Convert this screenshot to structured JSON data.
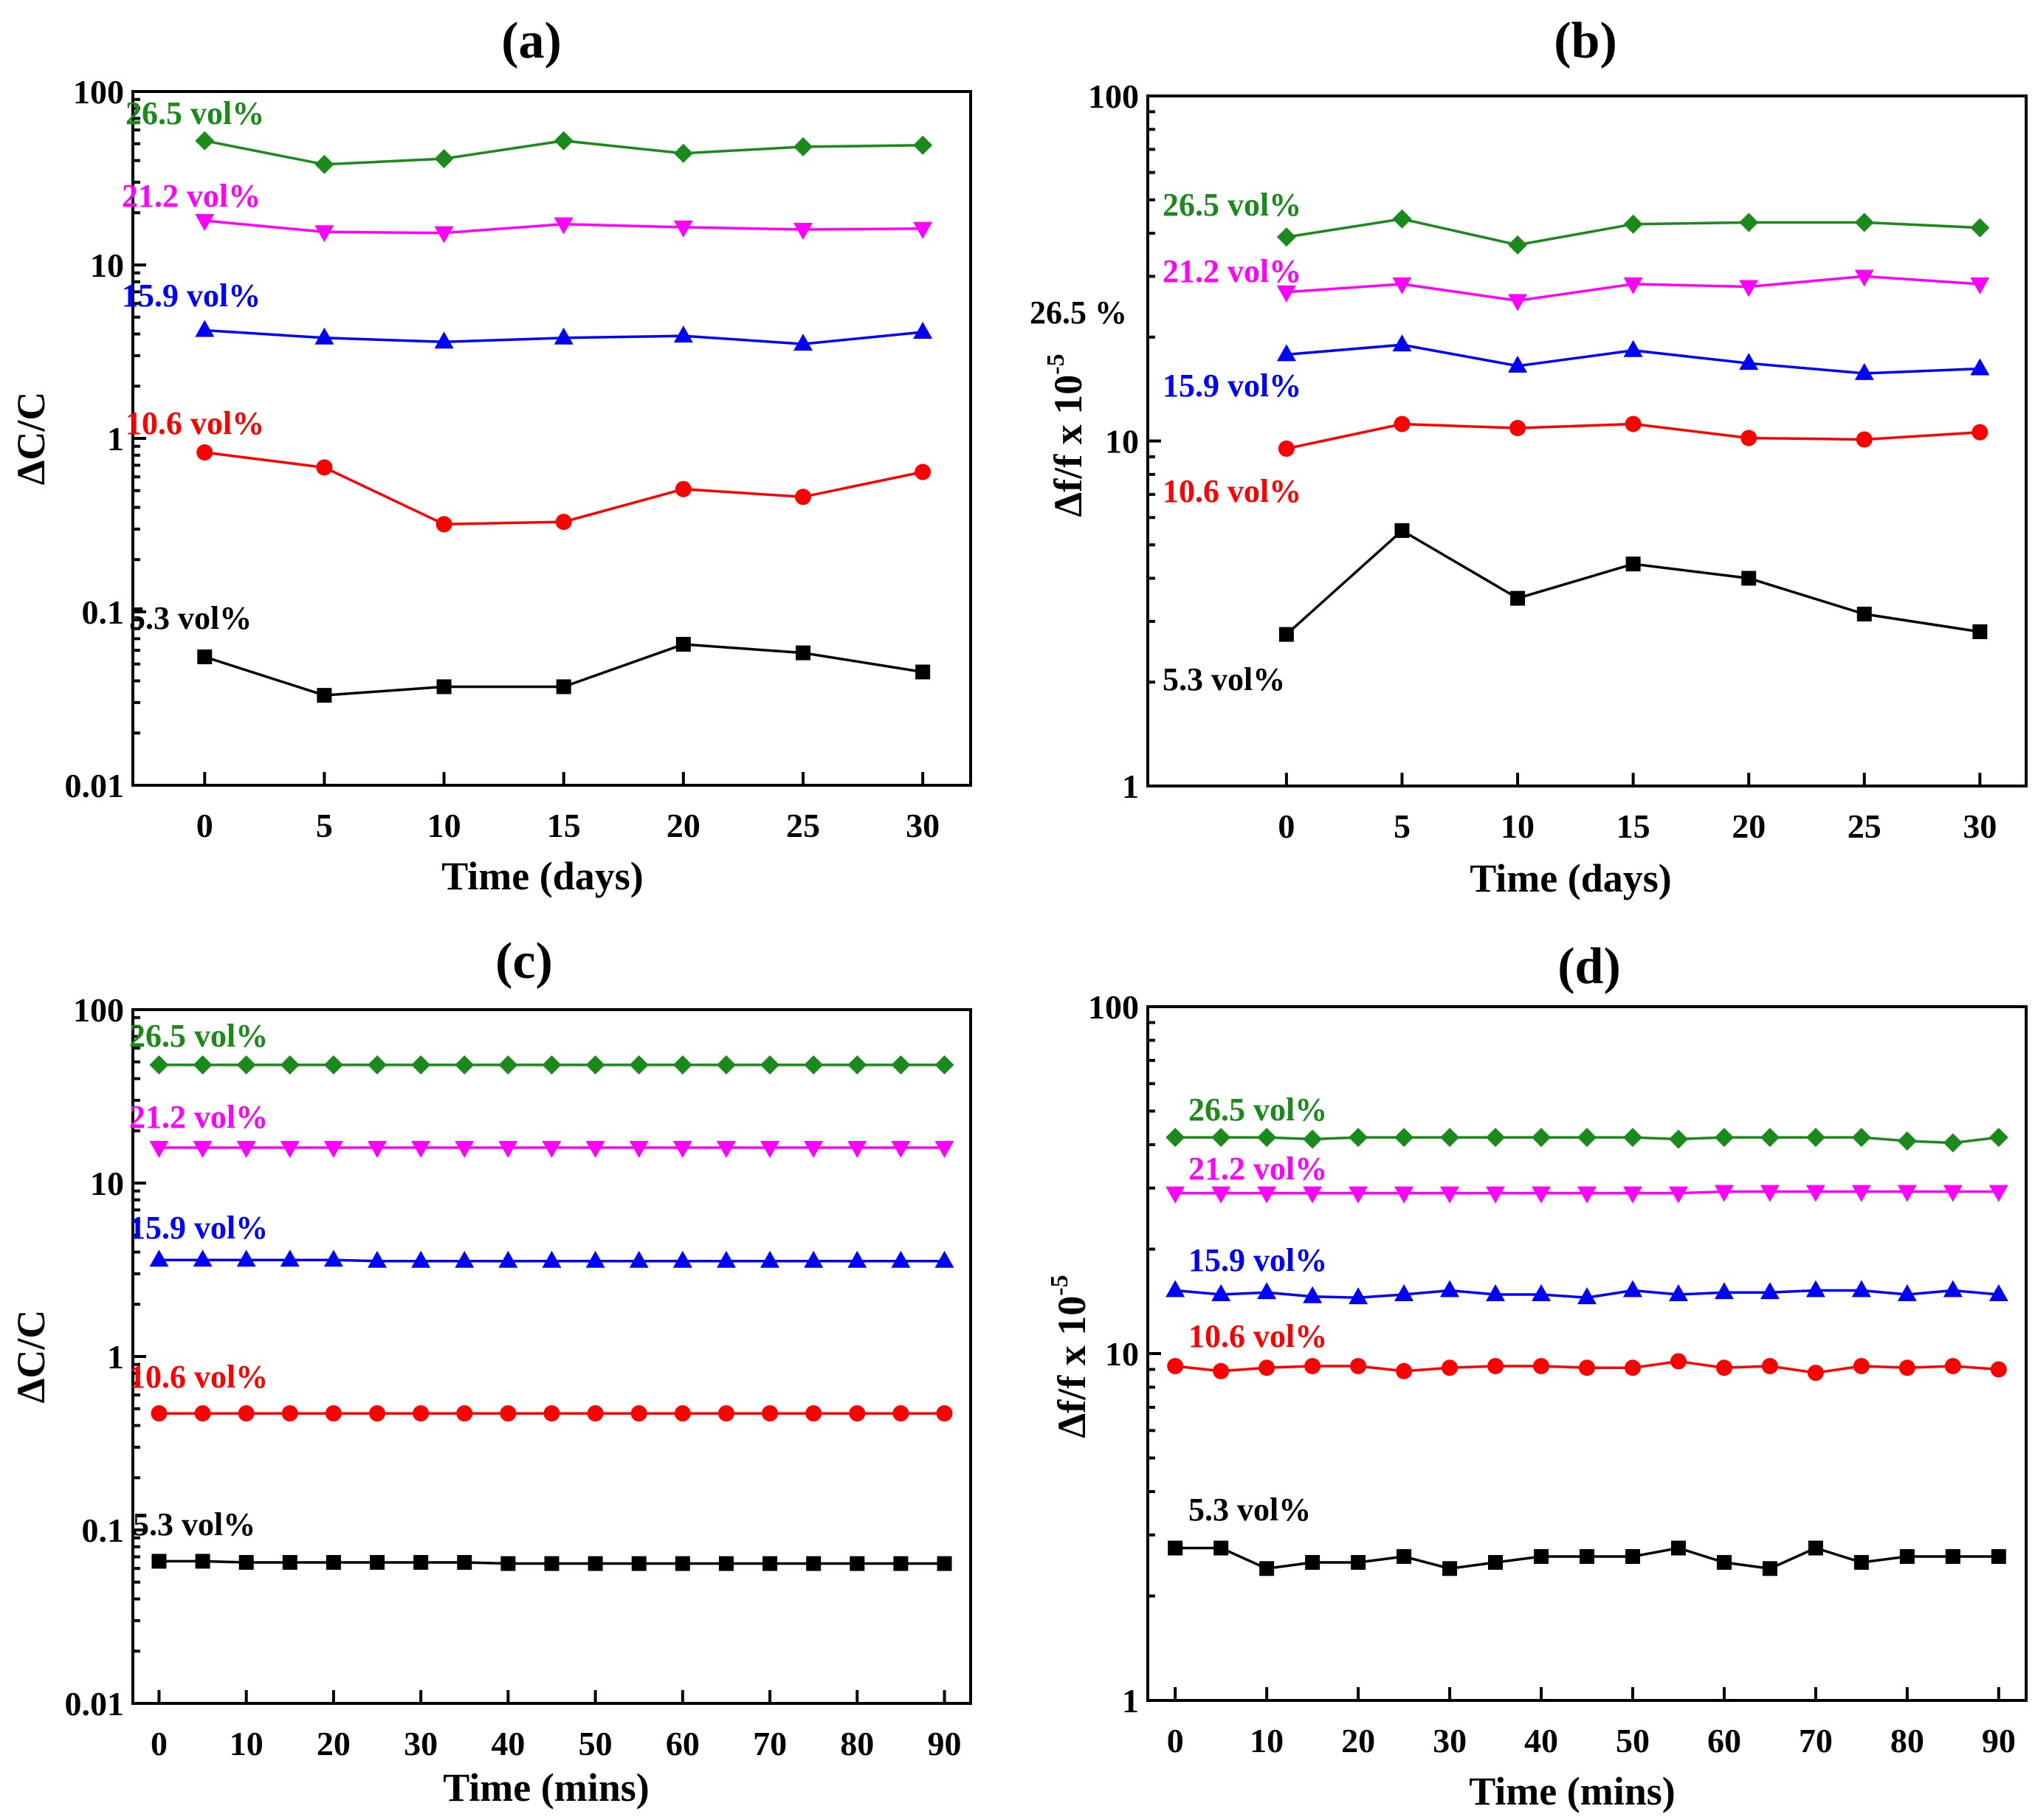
{
  "chart_data": [
    {
      "id": "a",
      "type": "line",
      "title": "(a)",
      "xlabel": "Time (days)",
      "ylabel": "ΔC/C",
      "yscale": "log",
      "ylim": [
        0.01,
        100
      ],
      "xlim": [
        -3,
        32
      ],
      "yticks": [
        "100",
        "10",
        "1",
        "0.1",
        "0.01"
      ],
      "xticks": [
        "0",
        "5",
        "10",
        "15",
        "20",
        "25",
        "30"
      ],
      "x": [
        0,
        5,
        10,
        15,
        20,
        25,
        30
      ],
      "series": [
        {
          "name": "26.5 vol%",
          "color": "#1a8a1a",
          "marker": "diamond",
          "values": [
            52,
            38,
            41,
            52,
            44,
            48,
            49
          ]
        },
        {
          "name": "21.2 vol%",
          "color": "#ff00ff",
          "marker": "triangle-down",
          "values": [
            18,
            15.5,
            15.3,
            17.2,
            16.5,
            16,
            16.2
          ]
        },
        {
          "name": "15.9 vol%",
          "color": "#0000ff",
          "marker": "triangle-up",
          "values": [
            4.2,
            3.8,
            3.6,
            3.8,
            3.9,
            3.5,
            4.1
          ]
        },
        {
          "name": "10.6 vol%",
          "color": "#ff0000",
          "marker": "circle",
          "values": [
            0.83,
            0.68,
            0.32,
            0.33,
            0.51,
            0.46,
            0.64
          ]
        },
        {
          "name": "5.3 vol%",
          "color": "#000000",
          "marker": "square",
          "values": [
            0.055,
            0.033,
            0.037,
            0.037,
            0.065,
            0.058,
            0.045
          ]
        }
      ]
    },
    {
      "id": "b",
      "type": "line",
      "title": "(b)",
      "xlabel": "Time (days)",
      "ylabel": "Δf/f x 10",
      "ylabel_sup": "-5",
      "yscale": "log",
      "ylim": [
        1,
        100
      ],
      "xlim": [
        -6,
        32
      ],
      "yticks": [
        "100",
        "10",
        "1"
      ],
      "xticks": [
        "0",
        "5",
        "10",
        "15",
        "20",
        "25",
        "30"
      ],
      "x": [
        0,
        5,
        10,
        15,
        20,
        25,
        30
      ],
      "annotation": "26.5 %",
      "series": [
        {
          "name": "26.5 vol%",
          "color": "#1a8a1a",
          "marker": "diamond",
          "values": [
            39,
            44,
            37,
            42.5,
            43,
            43,
            41.5
          ]
        },
        {
          "name": "21.2 vol%",
          "color": "#ff00ff",
          "marker": "triangle-down",
          "values": [
            27,
            28.5,
            25.5,
            28.5,
            28,
            30,
            28.5
          ]
        },
        {
          "name": "15.9 vol%",
          "color": "#0000ff",
          "marker": "triangle-up",
          "values": [
            17.8,
            19,
            16.5,
            18.3,
            16.8,
            15.7,
            16.2
          ]
        },
        {
          "name": "10.6 vol%",
          "color": "#ff0000",
          "marker": "circle",
          "values": [
            9.5,
            11.2,
            10.9,
            11.2,
            10.2,
            10.1,
            10.6
          ]
        },
        {
          "name": "5.3 vol%",
          "color": "#000000",
          "marker": "square",
          "values": [
            2.75,
            5.5,
            3.5,
            4.4,
            4.0,
            3.15,
            2.8
          ]
        }
      ]
    },
    {
      "id": "c",
      "type": "line",
      "title": "(c)",
      "xlabel": "Time (mins)",
      "ylabel": "ΔC/C",
      "yscale": "log",
      "ylim": [
        0.01,
        100
      ],
      "xlim": [
        -3,
        93
      ],
      "yticks": [
        "100",
        "10",
        "1",
        "0.1",
        "0.01"
      ],
      "xticks": [
        "0",
        "10",
        "20",
        "30",
        "40",
        "50",
        "60",
        "70",
        "80",
        "90"
      ],
      "x": [
        0,
        5,
        10,
        15,
        20,
        25,
        30,
        35,
        40,
        45,
        50,
        55,
        60,
        65,
        70,
        75,
        80,
        85,
        90
      ],
      "series": [
        {
          "name": "26.5 vol%",
          "color": "#1a8a1a",
          "marker": "diamond",
          "values": [
            48,
            48,
            48,
            48,
            48,
            48,
            48,
            48,
            48,
            48,
            48,
            48,
            48,
            48,
            48,
            48,
            48,
            48,
            48
          ]
        },
        {
          "name": "21.2 vol%",
          "color": "#ff00ff",
          "marker": "triangle-down",
          "values": [
            16,
            16,
            16,
            16,
            16,
            16,
            16,
            16,
            16,
            16,
            16,
            16,
            16,
            16,
            16,
            16,
            16,
            16,
            16
          ]
        },
        {
          "name": "15.9 vol%",
          "color": "#0000ff",
          "marker": "triangle-up",
          "values": [
            3.6,
            3.6,
            3.6,
            3.6,
            3.6,
            3.55,
            3.55,
            3.55,
            3.55,
            3.55,
            3.55,
            3.55,
            3.55,
            3.55,
            3.55,
            3.55,
            3.55,
            3.55,
            3.55
          ]
        },
        {
          "name": "10.6 vol%",
          "color": "#ff0000",
          "marker": "circle",
          "values": [
            0.47,
            0.47,
            0.47,
            0.47,
            0.47,
            0.47,
            0.47,
            0.47,
            0.47,
            0.47,
            0.47,
            0.47,
            0.47,
            0.47,
            0.47,
            0.47,
            0.47,
            0.47,
            0.47
          ]
        },
        {
          "name": "5.3 vol%",
          "color": "#000000",
          "marker": "square",
          "values": [
            0.066,
            0.066,
            0.065,
            0.065,
            0.065,
            0.065,
            0.065,
            0.065,
            0.064,
            0.064,
            0.064,
            0.064,
            0.064,
            0.064,
            0.064,
            0.064,
            0.064,
            0.064,
            0.064
          ]
        }
      ]
    },
    {
      "id": "d",
      "type": "line",
      "title": "(d)",
      "xlabel": "Time (mins)",
      "ylabel": "Δf/f x 10",
      "ylabel_sup": "-5",
      "yscale": "log",
      "ylim": [
        1,
        100
      ],
      "xlim": [
        -3,
        93
      ],
      "yticks": [
        "100",
        "10",
        "1"
      ],
      "xticks": [
        "0",
        "10",
        "20",
        "30",
        "40",
        "50",
        "60",
        "70",
        "80",
        "90"
      ],
      "x": [
        0,
        5,
        10,
        15,
        20,
        25,
        30,
        35,
        40,
        45,
        50,
        55,
        60,
        65,
        70,
        75,
        80,
        85,
        90
      ],
      "series": [
        {
          "name": "26.5 vol%",
          "color": "#1a8a1a",
          "marker": "diamond",
          "values": [
            42,
            42,
            42,
            41.5,
            42,
            42,
            42,
            42,
            42,
            42,
            42,
            41.5,
            42,
            42,
            42,
            42,
            41,
            40.5,
            42
          ]
        },
        {
          "name": "21.2 vol%",
          "color": "#ff00ff",
          "marker": "triangle-down",
          "values": [
            29,
            29,
            29,
            29,
            29,
            29,
            29,
            29,
            29,
            29,
            29,
            29,
            29.3,
            29.3,
            29.3,
            29.3,
            29.3,
            29.3,
            29.3
          ]
        },
        {
          "name": "15.9 vol%",
          "color": "#0000ff",
          "marker": "triangle-up",
          "values": [
            15.2,
            14.8,
            15,
            14.6,
            14.5,
            14.8,
            15.2,
            14.8,
            14.8,
            14.5,
            15.2,
            14.8,
            15,
            15,
            15.2,
            15.2,
            14.8,
            15.2,
            14.8
          ]
        },
        {
          "name": "10.6 vol%",
          "color": "#ff0000",
          "marker": "circle",
          "values": [
            9.2,
            8.9,
            9.1,
            9.2,
            9.2,
            8.9,
            9.1,
            9.2,
            9.2,
            9.1,
            9.1,
            9.5,
            9.1,
            9.2,
            8.8,
            9.2,
            9.1,
            9.2,
            9.0
          ]
        },
        {
          "name": "5.3 vol%",
          "color": "#000000",
          "marker": "square",
          "values": [
            2.75,
            2.75,
            2.4,
            2.5,
            2.5,
            2.6,
            2.4,
            2.5,
            2.6,
            2.6,
            2.6,
            2.75,
            2.5,
            2.4,
            2.75,
            2.5,
            2.6,
            2.6,
            2.6
          ]
        }
      ]
    }
  ]
}
